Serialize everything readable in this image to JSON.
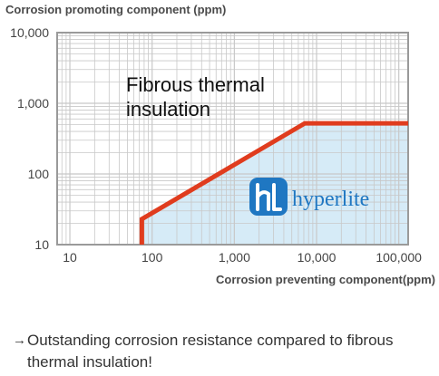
{
  "chart_data": {
    "type": "line",
    "ylabel": "Corrosion promoting component (ppm)",
    "xlabel": "Corrosion preventing component(ppm)",
    "xscale": "log",
    "yscale": "log",
    "xlim": [
      7,
      130000
    ],
    "ylim": [
      10,
      10000
    ],
    "x_ticks": [
      10,
      100,
      1000,
      10000,
      100000
    ],
    "x_tick_labels": [
      "10",
      "100",
      "1,000",
      "10,000",
      "100,000"
    ],
    "y_ticks": [
      10,
      100,
      1000,
      10000
    ],
    "y_tick_labels": [
      "10",
      "100",
      "1,000",
      "10,000"
    ],
    "grid": true,
    "boundary_line": {
      "x": [
        75,
        75,
        7200,
        130000
      ],
      "y": [
        10,
        23,
        520,
        520
      ],
      "color": "#e03c1e"
    },
    "annotation_above": [
      "Fibrous thermal",
      "insulation"
    ],
    "annotation_below": "hyperlite",
    "colors": {
      "shaded_region": "#d6ebf7",
      "grid_line": "#c8c8c8",
      "frame": "#9a9a9a",
      "logo_blue": "#1f77c2"
    }
  },
  "caption": {
    "arrow": "→",
    "text": "Outstanding corrosion resistance compared to fibrous thermal insulation!"
  }
}
